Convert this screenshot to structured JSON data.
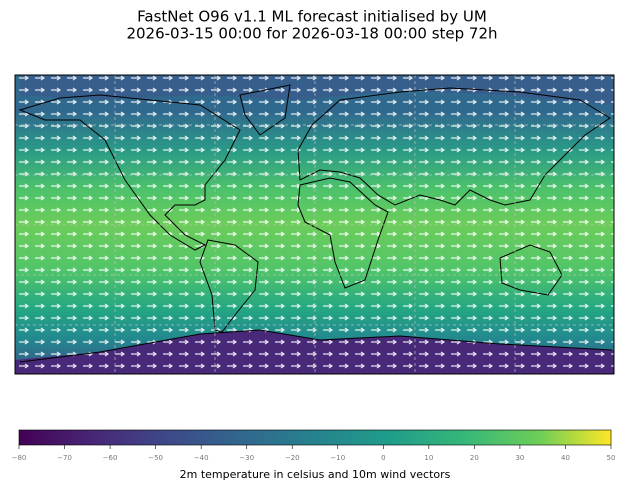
{
  "title": [
    "FastNet O96 v1.1 ML forecast initialised by UM",
    "2026-03-15 00:00 for 2026-03-18 00:00 step 72h"
  ],
  "colorbar": {
    "label": "2m temperature in celsius and 10m wind vectors",
    "lim": [
      -80,
      50
    ],
    "ticks": [
      {
        "value": -80,
        "label": "−80"
      },
      {
        "value": -70,
        "label": "−70"
      },
      {
        "value": -60,
        "label": "−60"
      },
      {
        "value": -50,
        "label": "−50"
      },
      {
        "value": -40,
        "label": "−40"
      },
      {
        "value": -30,
        "label": "−30"
      },
      {
        "value": -20,
        "label": "−20"
      },
      {
        "value": -10,
        "label": "−10"
      },
      0,
      10,
      20,
      30,
      40,
      50
    ]
  }
}
